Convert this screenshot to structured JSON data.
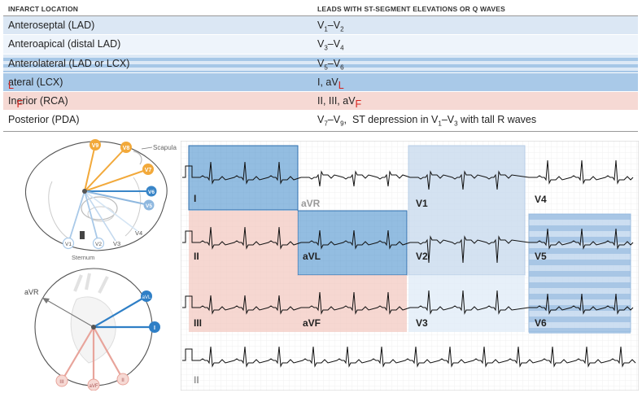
{
  "table": {
    "header": {
      "location": "INFARCT LOCATION",
      "leads": "LEADS WITH ST-SEGMENT ELEVATIONS OR Q WAVES"
    },
    "rows": [
      {
        "location": "Anteroseptal (LAD)",
        "leads_html": "V<sub>1</sub>–V<sub>2</sub>",
        "bg": "#dbe7f4"
      },
      {
        "location": "Anteroapical (distal LAD)",
        "leads_html": "V<sub>3</sub>–V<sub>4</sub>",
        "bg": "#eef4fb"
      },
      {
        "location": "Anterolateral (LAD or LCX)",
        "leads_html": "V<sub>5</sub>–V<sub>6</sub>",
        "bg": "stripes"
      },
      {
        "location_html": "<span class=\"red\">L</span>ateral (LCX)",
        "leads_html": "I, aV<span class=\"red\">L</span>",
        "bg": "#a9c9e8"
      },
      {
        "location_html": "In<span class=\"red\">F</span>erior (RCA)",
        "leads_html": "II, III, aV<span class=\"red\">F</span>",
        "bg": "#f6d9d4"
      },
      {
        "location": "Posterior (PDA)",
        "leads_html": "V<sub>7</sub>–V<sub>9</sub>,&nbsp; ST depression in V<sub>1</sub>–V<sub>3</sub> with tall R waves",
        "bg": "#ffffff"
      }
    ]
  },
  "chest_diagram": {
    "labels": {
      "scapula": "Scapula",
      "sternum": "Sternum"
    },
    "posterior_leads": [
      "V9",
      "V8",
      "V7"
    ],
    "lateral_leads": [
      "V6",
      "V5"
    ],
    "anterior_leads": [
      "V4",
      "V3",
      "V2",
      "V1"
    ],
    "colors": {
      "posterior": "#f2a93b",
      "lateral": "#3a86c8",
      "anterior": "#a9c9e8"
    }
  },
  "limb_diagram": {
    "leads": {
      "aVR": "aVR",
      "aVL": "aVL",
      "I": "I",
      "II": "II",
      "III": "III",
      "aVF": "aVF"
    },
    "colors": {
      "lateral": "#2f7fc6",
      "inferior": "#e8a49b"
    }
  },
  "ecg": {
    "rows": [
      [
        "I",
        "aVR",
        "V1",
        "V4"
      ],
      [
        "II",
        "aVL",
        "V2",
        "V5"
      ],
      [
        "III",
        "aVF",
        "V3",
        "V6"
      ],
      [
        "II"
      ]
    ],
    "colors": {
      "lateral": "#3a86c8",
      "inferior": "#f3c9c2",
      "septal": "#c9dbee",
      "apical": "#e1ecf7",
      "grid": "#e4e4e4"
    }
  }
}
